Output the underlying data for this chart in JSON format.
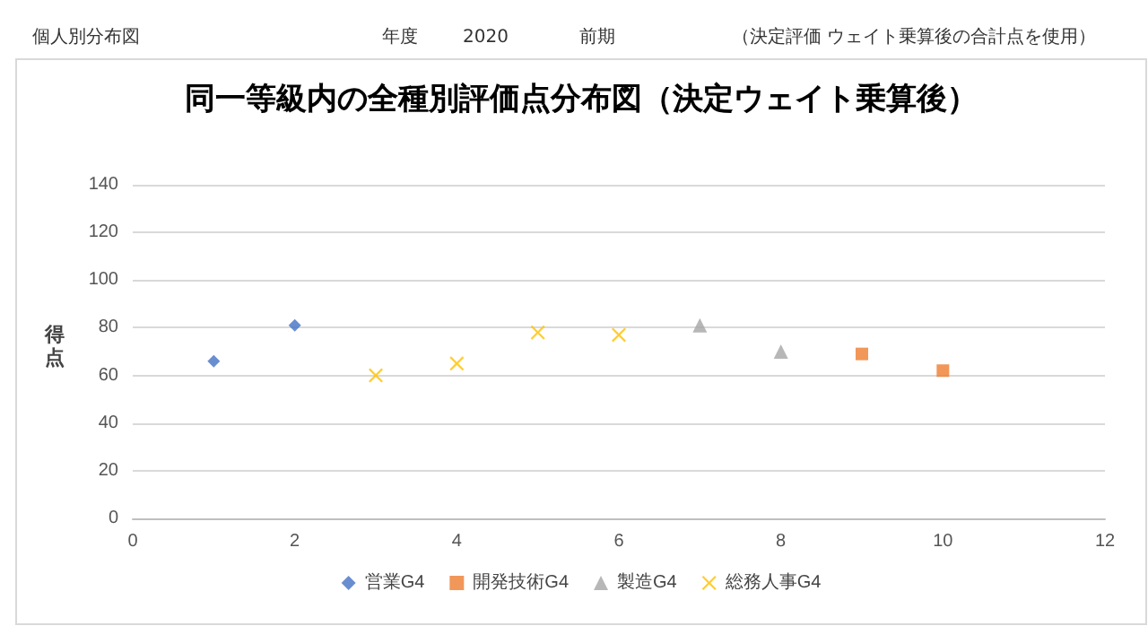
{
  "chart_data": {
    "type": "scatter",
    "title": "同一等級内の全種別評価点分布図（決定ウェイト乗算後）",
    "ylabel": "得点",
    "annotations": [
      "個人別分布図",
      "年度",
      "2020",
      "前期",
      "（決定評価 ウェイト乗算後の合計点を使用）"
    ],
    "series": [
      {
        "name": "営業G4",
        "color": "#4472c4",
        "marker": "diamond",
        "x": [
          1,
          2
        ],
        "values": [
          66,
          81
        ]
      },
      {
        "name": "開発技術G4",
        "color": "#ed7d31",
        "marker": "square",
        "x": [
          9,
          10
        ],
        "values": [
          69,
          62
        ]
      },
      {
        "name": "製造G4",
        "color": "#a5a5a5",
        "marker": "triangle",
        "x": [
          7,
          8
        ],
        "values": [
          81,
          70
        ]
      },
      {
        "name": "総務人事G4",
        "color": "#ffc000",
        "marker": "cross",
        "x": [
          3,
          4,
          5,
          6
        ],
        "values": [
          60,
          65,
          78,
          77
        ]
      }
    ],
    "xlim": [
      0,
      12
    ],
    "xticks": [
      0,
      2,
      4,
      6,
      8,
      10,
      12
    ],
    "ylim": [
      0,
      140
    ],
    "yticks": [
      0,
      20,
      40,
      60,
      80,
      100,
      120,
      140
    ],
    "grid": "y",
    "legend": "bottom"
  }
}
